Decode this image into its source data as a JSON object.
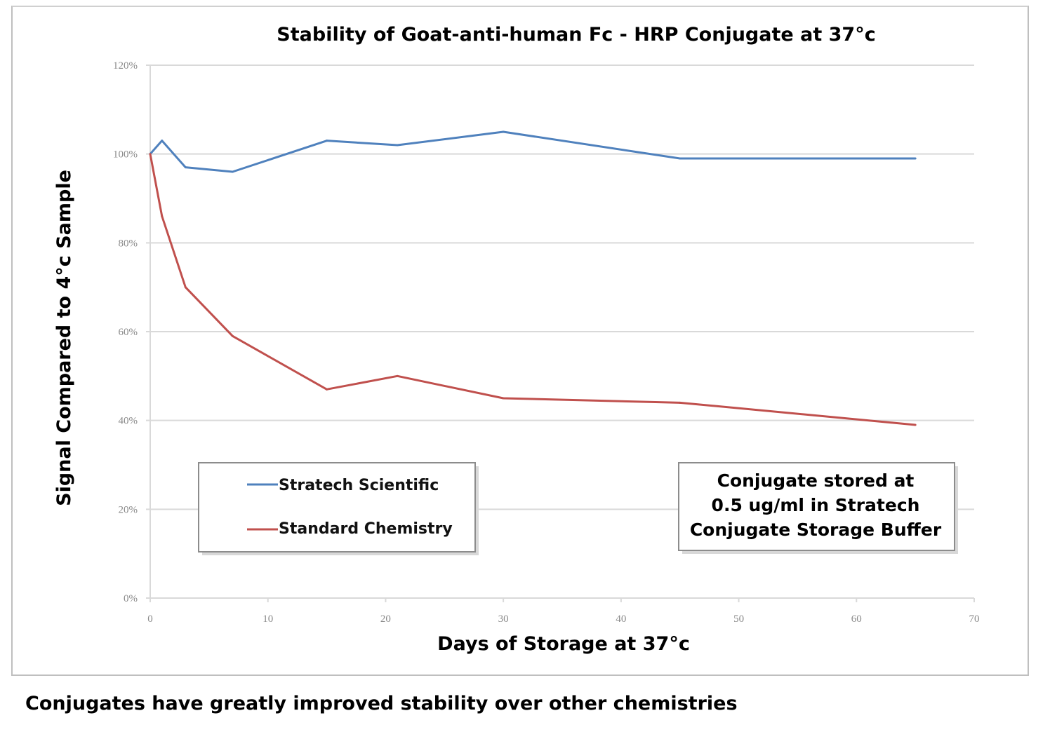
{
  "chart_data": {
    "type": "line",
    "title": "Stability of Goat-anti-human Fc - HRP Conjugate at 37°c",
    "xlabel": "Days of Storage at 37°c",
    "ylabel": "Signal Compared to 4°c Sample",
    "xlim": [
      0,
      70
    ],
    "ylim": [
      0,
      120
    ],
    "x_ticks": [
      "0",
      "10",
      "20",
      "30",
      "40",
      "50",
      "60",
      "70"
    ],
    "x_tick_values": [
      0,
      10,
      20,
      30,
      40,
      50,
      60,
      70
    ],
    "y_ticks": [
      "0%",
      "20%",
      "40%",
      "60%",
      "80%",
      "100%",
      "120%"
    ],
    "y_tick_values": [
      0,
      20,
      40,
      60,
      80,
      100,
      120
    ],
    "grid": "horizontal",
    "legend_placement": "bottom-left",
    "x": [
      0,
      1,
      3,
      7,
      15,
      21,
      30,
      45,
      65
    ],
    "series": [
      {
        "name": "Stratech Scientific",
        "color": "#4f81bd",
        "values": [
          100,
          103,
          97,
          96,
          103,
          102,
          105,
          99,
          99
        ]
      },
      {
        "name": "Standard Chemistry",
        "color": "#c0504d",
        "values": [
          100,
          86,
          70,
          59,
          47,
          50,
          45,
          44,
          39
        ]
      }
    ],
    "annotation": [
      "Conjugate stored at",
      "0.5 ug/ml in Stratech",
      "Conjugate Storage Buffer"
    ]
  },
  "caption": "Conjugates have greatly improved stability over other chemistries"
}
